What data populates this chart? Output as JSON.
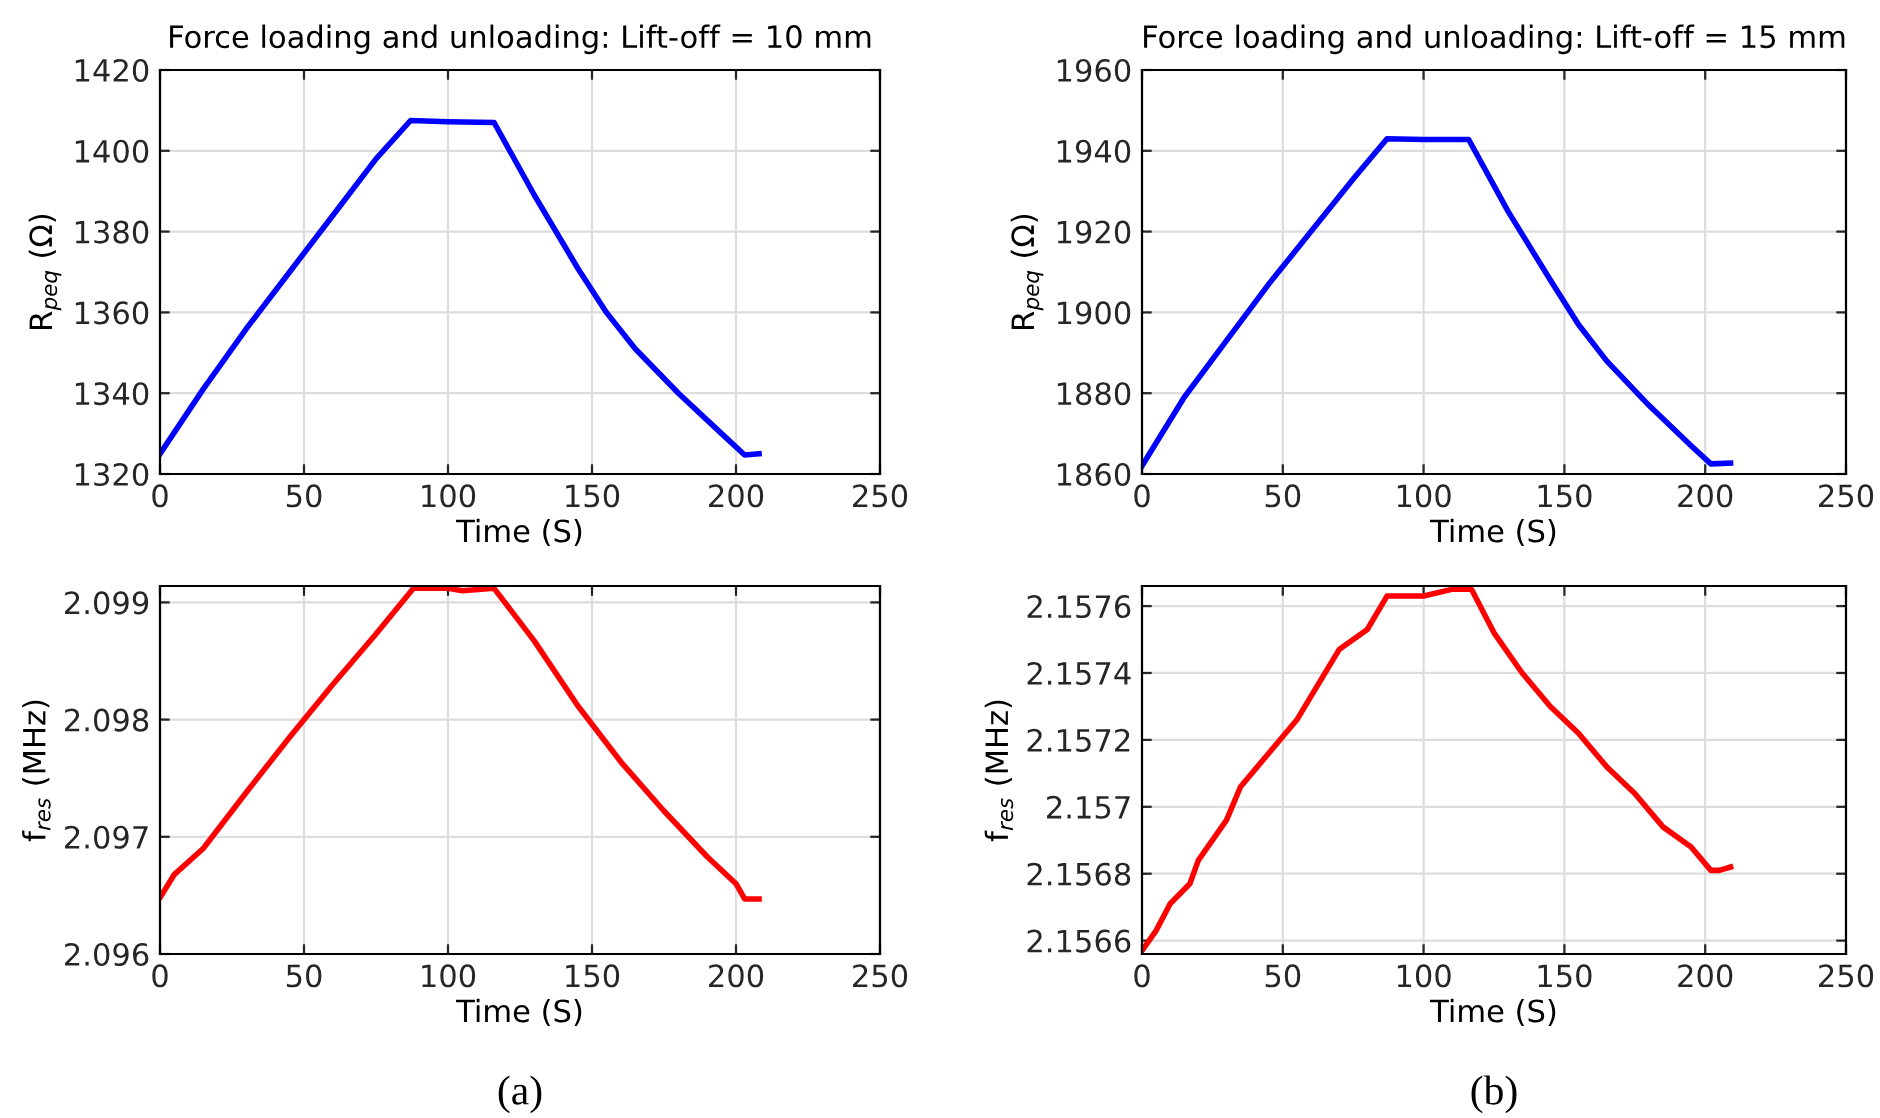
{
  "chart_data": [
    {
      "type": "line",
      "title": "Force loading and unloading: Lift-off = 10 mm",
      "xlabel": "Time (S)",
      "ylabel": "R$_{peq}$ (Ω)",
      "xlim": [
        0,
        250
      ],
      "xticks": [
        0,
        50,
        100,
        150,
        200,
        250
      ],
      "ylim": [
        1320,
        1420
      ],
      "yticks": [
        1320,
        1340,
        1360,
        1380,
        1400,
        1420
      ],
      "grid": true,
      "x": [
        0,
        15,
        30,
        45,
        60,
        75,
        87,
        100,
        116,
        130,
        145,
        155,
        165,
        180,
        195,
        203,
        208
      ],
      "series": [
        {
          "color": "#0000ff",
          "values": [
            1325,
            1341,
            1356,
            1370,
            1384,
            1398,
            1407.5,
            1407.2,
            1407,
            1389,
            1371,
            1360,
            1351,
            1340,
            1330,
            1324.7,
            1325
          ]
        }
      ]
    },
    {
      "type": "line",
      "title": "Force loading and unloading: Lift-off = 15 mm",
      "xlabel": "Time (S)",
      "ylabel": "R$_{peq}$ (Ω)",
      "xlim": [
        0,
        250
      ],
      "xticks": [
        0,
        50,
        100,
        150,
        200,
        250
      ],
      "ylim": [
        1860,
        1960
      ],
      "yticks": [
        1860,
        1880,
        1900,
        1920,
        1940,
        1960
      ],
      "grid": true,
      "x": [
        0,
        15,
        30,
        45,
        60,
        75,
        87,
        100,
        116,
        130,
        145,
        155,
        165,
        180,
        195,
        202,
        209
      ],
      "series": [
        {
          "color": "#0000ff",
          "values": [
            1862,
            1879,
            1893,
            1907,
            1920,
            1933,
            1943,
            1942.8,
            1942.8,
            1925,
            1908,
            1897,
            1888,
            1877,
            1867,
            1862.5,
            1862.7
          ]
        }
      ]
    },
    {
      "type": "line",
      "xlabel": "Time (S)",
      "ylabel": "f$_{res}$ (MHz)",
      "xlim": [
        0,
        250
      ],
      "xticks": [
        0,
        50,
        100,
        150,
        200,
        250
      ],
      "ylim": [
        2.096,
        2.09914
      ],
      "yticks": [
        2.096,
        2.097,
        2.098,
        2.099
      ],
      "grid": true,
      "annotations": [
        "(a)"
      ],
      "x": [
        0,
        5,
        15,
        30,
        45,
        60,
        75,
        88,
        100,
        105,
        116,
        130,
        145,
        160,
        175,
        190,
        200,
        203,
        208
      ],
      "series": [
        {
          "color": "#ff0000",
          "values": [
            2.09648,
            2.09668,
            2.0969,
            2.09738,
            2.09785,
            2.0983,
            2.09873,
            2.09912,
            2.09912,
            2.0991,
            2.09912,
            2.09867,
            2.09812,
            2.09764,
            2.09722,
            2.09683,
            2.0966,
            2.09647,
            2.09647
          ]
        }
      ]
    },
    {
      "type": "line",
      "xlabel": "Time (S)",
      "ylabel": "f$_{res}$ (MHz)",
      "xlim": [
        0,
        250
      ],
      "xticks": [
        0,
        50,
        100,
        150,
        200,
        250
      ],
      "ylim": [
        2.15656,
        2.15766
      ],
      "yticks": [
        2.1566,
        2.1568,
        2.157,
        2.1572,
        2.1574,
        2.1576
      ],
      "grid": true,
      "annotations": [
        "(b)"
      ],
      "x": [
        0,
        5,
        10,
        17,
        20,
        30,
        35,
        45,
        55,
        60,
        70,
        80,
        87,
        90,
        100,
        110,
        117,
        125,
        135,
        145,
        155,
        165,
        175,
        185,
        195,
        202,
        205,
        209
      ],
      "series": [
        {
          "color": "#ff0000",
          "values": [
            2.15657,
            2.15663,
            2.15671,
            2.15677,
            2.15684,
            2.15696,
            2.15706,
            2.15716,
            2.15726,
            2.15733,
            2.15747,
            2.15753,
            2.15763,
            2.15763,
            2.15763,
            2.15765,
            2.15765,
            2.15752,
            2.1574,
            2.1573,
            2.15722,
            2.15712,
            2.15704,
            2.15694,
            2.15688,
            2.15681,
            2.15681,
            2.15682
          ]
        }
      ]
    }
  ]
}
